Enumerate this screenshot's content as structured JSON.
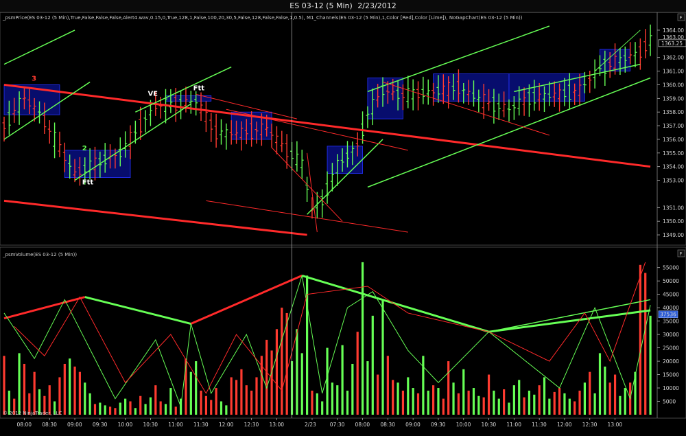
{
  "window": {
    "instrument": "ES 03-12 (5 Min)",
    "date": "2/23/2012"
  },
  "copyright": "© 2012 NinjaTrader, LLC",
  "panel_buttons": {
    "price": "F",
    "volume": "F"
  },
  "colors": {
    "background": "#000000",
    "up": "#66ff55",
    "down": "#ff3b30",
    "channel_box": "#0b14a8",
    "grid": "#2a2a2a",
    "price_marker": "#2b5bd6",
    "volume_marker": "#2b5bd6"
  },
  "chart_data": [
    {
      "type": "candlestick",
      "label": "_psmPrice(ES 03-12 (5 Min),True,False,False,False,Alert4.wav,0.15,0,True,128,1,False,100,20,30,5,False,128,False,False,1,0.5), M1_Channels(ES 03-12 (5 Min),1,Color [Red],Color [Lime]), NoGapChart(ES 03-12 (5 Min))",
      "y_ticks": [
        1349,
        1350,
        1351,
        1353,
        1354,
        1355,
        1356,
        1357,
        1358,
        1359,
        1360,
        1361,
        1362,
        1364
      ],
      "ylim": [
        1348.5,
        1364.5
      ],
      "last_price": 1363.25,
      "last_price_label": "1363.25",
      "ghost_tick": "1363.00",
      "annotations": [
        {
          "text": "3",
          "color": "#ff3b30",
          "x_index": 6,
          "y": 1360.3
        },
        {
          "text": "2",
          "color": "#66ff55",
          "x_index": 16,
          "y": 1355.2
        },
        {
          "text": "Ftt",
          "color": "#ffffff",
          "x_index": 16,
          "y": 1352.7
        },
        {
          "text": "VE",
          "color": "#ffffff",
          "x_index": 29,
          "y": 1359.2
        },
        {
          "text": "Ftt",
          "color": "#ffffff",
          "x_index": 38,
          "y": 1359.6
        }
      ],
      "boxes": [
        {
          "x0": 0,
          "x1": 11,
          "y0": 1357.8,
          "y1": 1360.0
        },
        {
          "x0": 12,
          "x1": 25,
          "y0": 1353.2,
          "y1": 1355.2
        },
        {
          "x0": 32,
          "x1": 41,
          "y0": 1358.8,
          "y1": 1359.2
        },
        {
          "x0": 45,
          "x1": 53,
          "y0": 1356.0,
          "y1": 1358.0
        },
        {
          "x0": 64,
          "x1": 71,
          "y0": 1353.5,
          "y1": 1355.5
        },
        {
          "x0": 72,
          "x1": 79,
          "y0": 1357.5,
          "y1": 1360.5
        },
        {
          "x0": 85,
          "x1": 100,
          "y0": 1358.8,
          "y1": 1360.8
        },
        {
          "x0": 100,
          "x1": 115,
          "y0": 1358.8,
          "y1": 1360.8
        },
        {
          "x0": 118,
          "x1": 124,
          "y0": 1361.0,
          "y1": 1362.6
        }
      ],
      "channels": [
        {
          "color": "#ff2a2a",
          "width": 3,
          "x0": 0,
          "y0": 1360.0,
          "x1": 128,
          "y1": 1354.0
        },
        {
          "color": "#ff2a2a",
          "width": 3,
          "x0": 0,
          "y0": 1351.5,
          "x1": 60,
          "y1": 1349.0
        },
        {
          "color": "#66ff55",
          "width": 1.5,
          "x0": 0,
          "y0": 1361.5,
          "x1": 14,
          "y1": 1364.0
        },
        {
          "color": "#66ff55",
          "width": 1.5,
          "x0": 0,
          "y0": 1356.0,
          "x1": 17,
          "y1": 1360.2
        },
        {
          "color": "#66ff55",
          "width": 1.5,
          "x0": 14,
          "y0": 1353.0,
          "x1": 37,
          "y1": 1358.6
        },
        {
          "color": "#66ff55",
          "width": 1.5,
          "x0": 26,
          "y0": 1358.0,
          "x1": 45,
          "y1": 1361.3
        },
        {
          "color": "#66ff55",
          "width": 1.5,
          "x0": 60,
          "y0": 1350.5,
          "x1": 75,
          "y1": 1356.0
        },
        {
          "color": "#66ff55",
          "width": 1.5,
          "x0": 72,
          "y0": 1359.5,
          "x1": 108,
          "y1": 1364.3
        },
        {
          "color": "#66ff55",
          "width": 1.5,
          "x0": 72,
          "y0": 1352.5,
          "x1": 128,
          "y1": 1360.5
        },
        {
          "color": "#66ff55",
          "width": 1.5,
          "x0": 101,
          "y0": 1359.5,
          "x1": 126,
          "y1": 1361.5
        },
        {
          "color": "#66ff55",
          "width": 1,
          "x0": 117,
          "y0": 1361.0,
          "x1": 126,
          "y1": 1364.0
        },
        {
          "color": "#ff2a2a",
          "width": 1,
          "x0": 38,
          "y0": 1359.3,
          "x1": 58,
          "y1": 1357.5
        },
        {
          "color": "#ff2a2a",
          "width": 1,
          "x0": 40,
          "y0": 1351.5,
          "x1": 80,
          "y1": 1349.2
        },
        {
          "color": "#ff2a2a",
          "width": 1,
          "x0": 44,
          "y0": 1358.2,
          "x1": 80,
          "y1": 1355.2
        },
        {
          "color": "#ff2a2a",
          "width": 1,
          "x0": 75,
          "y0": 1360.2,
          "x1": 108,
          "y1": 1356.3
        },
        {
          "color": "#ff2a2a",
          "width": 1,
          "x0": 60,
          "y0": 1355.0,
          "x1": 62,
          "y1": 1349.2
        },
        {
          "color": "#ff2a2a",
          "width": 1,
          "x0": 53,
          "y0": 1355.4,
          "x1": 67,
          "y1": 1350.0
        }
      ]
    },
    {
      "type": "bar",
      "label": "_psmVolume(ES 03-12 (5 Min))",
      "y_ticks": [
        5000,
        10000,
        15000,
        20000,
        25000,
        30000,
        35000,
        40000,
        45000,
        50000,
        55000
      ],
      "ylim": [
        0,
        58000
      ],
      "last_volume": 37536,
      "last_volume_label": "37536",
      "bars": [
        {
          "v": 22000,
          "c": "down"
        },
        {
          "v": 9000,
          "c": "up"
        },
        {
          "v": 6000,
          "c": "down"
        },
        {
          "v": 23000,
          "c": "up"
        },
        {
          "v": 19000,
          "c": "down"
        },
        {
          "v": 8000,
          "c": "down"
        },
        {
          "v": 16000,
          "c": "down"
        },
        {
          "v": 9500,
          "c": "up"
        },
        {
          "v": 7000,
          "c": "down"
        },
        {
          "v": 11000,
          "c": "down"
        },
        {
          "v": 5000,
          "c": "up"
        },
        {
          "v": 14000,
          "c": "down"
        },
        {
          "v": 19000,
          "c": "down"
        },
        {
          "v": 21000,
          "c": "up"
        },
        {
          "v": 18000,
          "c": "down"
        },
        {
          "v": 16000,
          "c": "down"
        },
        {
          "v": 12000,
          "c": "up"
        },
        {
          "v": 8000,
          "c": "up"
        },
        {
          "v": 4000,
          "c": "down"
        },
        {
          "v": 4500,
          "c": "up"
        },
        {
          "v": 3500,
          "c": "up"
        },
        {
          "v": 3000,
          "c": "down"
        },
        {
          "v": 2500,
          "c": "down"
        },
        {
          "v": 4500,
          "c": "up"
        },
        {
          "v": 6000,
          "c": "up"
        },
        {
          "v": 5000,
          "c": "down"
        },
        {
          "v": 2500,
          "c": "up"
        },
        {
          "v": 7000,
          "c": "down"
        },
        {
          "v": 4000,
          "c": "up"
        },
        {
          "v": 6500,
          "c": "up"
        },
        {
          "v": 11000,
          "c": "down"
        },
        {
          "v": 5000,
          "c": "down"
        },
        {
          "v": 4000,
          "c": "up"
        },
        {
          "v": 10000,
          "c": "up"
        },
        {
          "v": 3000,
          "c": "down"
        },
        {
          "v": 6000,
          "c": "up"
        },
        {
          "v": 21000,
          "c": "down"
        },
        {
          "v": 16000,
          "c": "up"
        },
        {
          "v": 20000,
          "c": "up"
        },
        {
          "v": 9000,
          "c": "down"
        },
        {
          "v": 7000,
          "c": "down"
        },
        {
          "v": 5500,
          "c": "down"
        },
        {
          "v": 10000,
          "c": "down"
        },
        {
          "v": 5000,
          "c": "up"
        },
        {
          "v": 3500,
          "c": "up"
        },
        {
          "v": 14000,
          "c": "down"
        },
        {
          "v": 13000,
          "c": "down"
        },
        {
          "v": 17000,
          "c": "down"
        },
        {
          "v": 11000,
          "c": "down"
        },
        {
          "v": 9000,
          "c": "down"
        },
        {
          "v": 14000,
          "c": "down"
        },
        {
          "v": 22000,
          "c": "down"
        },
        {
          "v": 28000,
          "c": "down"
        },
        {
          "v": 24000,
          "c": "down"
        },
        {
          "v": 32000,
          "c": "down"
        },
        {
          "v": 40000,
          "c": "down"
        },
        {
          "v": 38000,
          "c": "down"
        },
        {
          "v": 20000,
          "c": "up"
        },
        {
          "v": 32000,
          "c": "up"
        },
        {
          "v": 23000,
          "c": "up"
        },
        {
          "v": 52000,
          "c": "up"
        },
        {
          "v": 9000,
          "c": "down"
        },
        {
          "v": 8000,
          "c": "up"
        },
        {
          "v": 5000,
          "c": "up"
        },
        {
          "v": 25000,
          "c": "up"
        },
        {
          "v": 12000,
          "c": "up"
        },
        {
          "v": 11000,
          "c": "up"
        },
        {
          "v": 26000,
          "c": "up"
        },
        {
          "v": 9000,
          "c": "up"
        },
        {
          "v": 19000,
          "c": "up"
        },
        {
          "v": 31000,
          "c": "down"
        },
        {
          "v": 57000,
          "c": "up"
        },
        {
          "v": 20000,
          "c": "up"
        },
        {
          "v": 37000,
          "c": "up"
        },
        {
          "v": 15000,
          "c": "down"
        },
        {
          "v": 43000,
          "c": "up"
        },
        {
          "v": 22000,
          "c": "down"
        },
        {
          "v": 13000,
          "c": "down"
        },
        {
          "v": 12000,
          "c": "up"
        },
        {
          "v": 9000,
          "c": "down"
        },
        {
          "v": 14000,
          "c": "up"
        },
        {
          "v": 10000,
          "c": "up"
        },
        {
          "v": 8000,
          "c": "down"
        },
        {
          "v": 22000,
          "c": "up"
        },
        {
          "v": 9000,
          "c": "up"
        },
        {
          "v": 11000,
          "c": "down"
        },
        {
          "v": 10000,
          "c": "up"
        },
        {
          "v": 6000,
          "c": "down"
        },
        {
          "v": 20000,
          "c": "down"
        },
        {
          "v": 12000,
          "c": "up"
        },
        {
          "v": 8000,
          "c": "down"
        },
        {
          "v": 17000,
          "c": "up"
        },
        {
          "v": 9000,
          "c": "down"
        },
        {
          "v": 10000,
          "c": "up"
        },
        {
          "v": 7000,
          "c": "up"
        },
        {
          "v": 6500,
          "c": "down"
        },
        {
          "v": 15000,
          "c": "down"
        },
        {
          "v": 9000,
          "c": "up"
        },
        {
          "v": 6000,
          "c": "up"
        },
        {
          "v": 9500,
          "c": "down"
        },
        {
          "v": 4500,
          "c": "up"
        },
        {
          "v": 11000,
          "c": "up"
        },
        {
          "v": 13000,
          "c": "up"
        },
        {
          "v": 6500,
          "c": "down"
        },
        {
          "v": 9000,
          "c": "up"
        },
        {
          "v": 7500,
          "c": "up"
        },
        {
          "v": 11000,
          "c": "down"
        },
        {
          "v": 14000,
          "c": "up"
        },
        {
          "v": 6000,
          "c": "up"
        },
        {
          "v": 8500,
          "c": "down"
        },
        {
          "v": 10000,
          "c": "down"
        },
        {
          "v": 8000,
          "c": "up"
        },
        {
          "v": 6000,
          "c": "up"
        },
        {
          "v": 5000,
          "c": "down"
        },
        {
          "v": 9000,
          "c": "down"
        },
        {
          "v": 12000,
          "c": "up"
        },
        {
          "v": 16000,
          "c": "down"
        },
        {
          "v": 8000,
          "c": "up"
        },
        {
          "v": 23000,
          "c": "up"
        },
        {
          "v": 18000,
          "c": "up"
        },
        {
          "v": 12000,
          "c": "down"
        },
        {
          "v": 15000,
          "c": "down"
        },
        {
          "v": 7000,
          "c": "up"
        },
        {
          "v": 10000,
          "c": "up"
        },
        {
          "v": 12000,
          "c": "down"
        },
        {
          "v": 16000,
          "c": "up"
        },
        {
          "v": 56000,
          "c": "down"
        },
        {
          "v": 53000,
          "c": "down"
        },
        {
          "v": 37000,
          "c": "up"
        }
      ],
      "swings": [
        {
          "color": "#ff2a2a",
          "width": 3,
          "points": [
            [
              0,
              36000
            ],
            [
              16,
              44000
            ]
          ]
        },
        {
          "color": "#66ff55",
          "width": 3,
          "points": [
            [
              16,
              44000
            ],
            [
              37,
              34000
            ]
          ]
        },
        {
          "color": "#ff2a2a",
          "width": 3,
          "points": [
            [
              37,
              34000
            ],
            [
              59,
              52000
            ]
          ]
        },
        {
          "color": "#66ff55",
          "width": 3,
          "points": [
            [
              59,
              52000
            ],
            [
              96,
              31000
            ],
            [
              128,
              39000
            ]
          ]
        },
        {
          "color": "#66ff55",
          "width": 1.5,
          "points": [
            [
              96,
              31000
            ],
            [
              128,
              43000
            ]
          ]
        },
        {
          "color": "#66ff55",
          "width": 1,
          "points": [
            [
              0,
              38000
            ],
            [
              6,
              21000
            ],
            [
              12,
              43000
            ],
            [
              22,
              6000
            ],
            [
              30,
              28000
            ],
            [
              35,
              3000
            ],
            [
              37,
              34000
            ],
            [
              41,
              8000
            ],
            [
              48,
              30000
            ],
            [
              52,
              10000
            ],
            [
              59,
              52000
            ],
            [
              63,
              8000
            ],
            [
              68,
              40000
            ],
            [
              73,
              46000
            ],
            [
              80,
              24000
            ],
            [
              86,
              12000
            ],
            [
              96,
              31000
            ],
            [
              110,
              10000
            ],
            [
              117,
              40000
            ],
            [
              124,
              6000
            ],
            [
              128,
              41000
            ]
          ]
        },
        {
          "color": "#ff2a2a",
          "width": 1,
          "points": [
            [
              2,
              33000
            ],
            [
              8,
              22000
            ],
            [
              15,
              44000
            ],
            [
              24,
              12000
            ],
            [
              33,
              30000
            ],
            [
              40,
              8000
            ],
            [
              46,
              30000
            ],
            [
              55,
              9000
            ],
            [
              60,
              45000
            ],
            [
              72,
              48000
            ],
            [
              80,
              38000
            ],
            [
              96,
              31000
            ],
            [
              108,
              20000
            ],
            [
              115,
              38000
            ],
            [
              120,
              20000
            ],
            [
              127,
              57000
            ]
          ]
        }
      ]
    }
  ],
  "time_axis": {
    "labels": [
      {
        "text": "08:00",
        "x_index": 4
      },
      {
        "text": "08:30",
        "x_index": 9
      },
      {
        "text": "09:00",
        "x_index": 14
      },
      {
        "text": "09:30",
        "x_index": 19
      },
      {
        "text": "10:00",
        "x_index": 24
      },
      {
        "text": "10:30",
        "x_index": 29
      },
      {
        "text": "11:00",
        "x_index": 34
      },
      {
        "text": "11:30",
        "x_index": 39
      },
      {
        "text": "12:00",
        "x_index": 44
      },
      {
        "text": "12:30",
        "x_index": 49
      },
      {
        "text": "13:00",
        "x_index": 54
      },
      {
        "text": "2/23",
        "x_index": 61
      },
      {
        "text": "07:30",
        "x_index": 66
      },
      {
        "text": "08:00",
        "x_index": 71
      },
      {
        "text": "08:30",
        "x_index": 76
      },
      {
        "text": "09:00",
        "x_index": 81
      },
      {
        "text": "09:30",
        "x_index": 86
      },
      {
        "text": "10:00",
        "x_index": 91
      },
      {
        "text": "10:30",
        "x_index": 96
      },
      {
        "text": "11:00",
        "x_index": 101
      },
      {
        "text": "11:30",
        "x_index": 106
      },
      {
        "text": "12:00",
        "x_index": 111
      },
      {
        "text": "12:30",
        "x_index": 116
      },
      {
        "text": "13:00",
        "x_index": 121
      }
    ],
    "crosshair_index": 57
  }
}
